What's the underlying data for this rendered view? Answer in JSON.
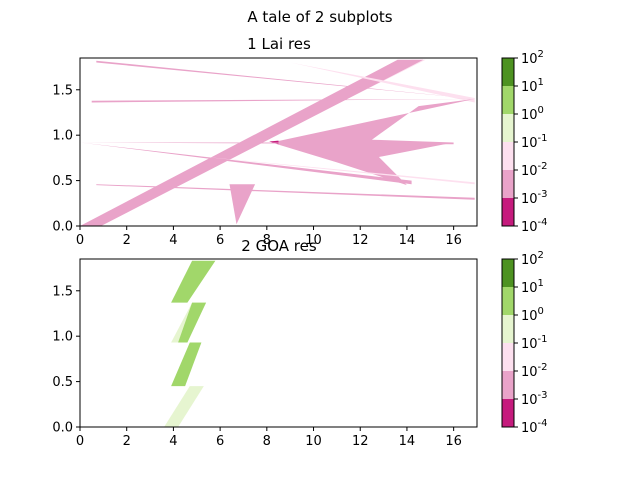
{
  "figure": {
    "suptitle": "A tale of 2 subplots"
  },
  "palette": {
    "bands": [
      "#c51b7d",
      "#e9a3c9",
      "#fde0ef",
      "#e6f5d0",
      "#a1d76a",
      "#4d9221"
    ],
    "white": "#ffffff"
  },
  "chart_data": [
    {
      "type": "contour",
      "title": "1 Lai res",
      "xlim": [
        0,
        17
      ],
      "ylim": [
        0,
        1.85
      ],
      "xticks": [
        "0",
        "2",
        "4",
        "6",
        "8",
        "10",
        "12",
        "14",
        "16"
      ],
      "yticks": [
        "0.0",
        "0.5",
        "1.0",
        "1.5"
      ],
      "colorbar": {
        "scale": "log",
        "levels": [
          -4,
          -3,
          -2,
          -1,
          0,
          1,
          2
        ],
        "tick_base": "10"
      },
      "regions": [
        {
          "band": 2,
          "points": [
            [
              0,
              0
            ],
            [
              14.2,
              1.83
            ],
            [
              14.8,
              1.83
            ],
            [
              0.6,
              0
            ]
          ]
        },
        {
          "band": 1,
          "points": [
            [
              0,
              0
            ],
            [
              13.6,
              1.83
            ],
            [
              14.7,
              1.83
            ],
            [
              0.9,
              0
            ]
          ]
        },
        {
          "band": 1,
          "points": [
            [
              0.7,
              1.82
            ],
            [
              16.9,
              1.4
            ],
            [
              0.7,
              1.8
            ]
          ]
        },
        {
          "band": 2,
          "points": [
            [
              9,
              1.8
            ],
            [
              16.9,
              1.36
            ],
            [
              16.9,
              1.41
            ]
          ]
        },
        {
          "band": 1,
          "points": [
            [
              0.5,
              1.38
            ],
            [
              16.9,
              1.4
            ],
            [
              0.5,
              1.36
            ]
          ]
        },
        {
          "band": 1,
          "points": [
            [
              8.2,
              0.92
            ],
            [
              16.9,
              1.4
            ],
            [
              14.5,
              1.32
            ],
            [
              12.5,
              0.95
            ],
            [
              16.0,
              0.92
            ],
            [
              12.8,
              0.76
            ],
            [
              14.0,
              0.45
            ],
            [
              11.0,
              0.7
            ]
          ]
        },
        {
          "band": 0,
          "points": [
            [
              8.1,
              0.93
            ],
            [
              8.5,
              0.94
            ],
            [
              8.5,
              0.9
            ]
          ]
        },
        {
          "band": 1,
          "points": [
            [
              0,
              0.92
            ],
            [
              16.0,
              0.9
            ],
            [
              16.0,
              0.92
            ]
          ]
        },
        {
          "band": 1,
          "points": [
            [
              0,
              0.92
            ],
            [
              14.2,
              0.46
            ],
            [
              14.2,
              0.5
            ]
          ]
        },
        {
          "band": 2,
          "points": [
            [
              5.0,
              0.77
            ],
            [
              16.9,
              0.46
            ],
            [
              16.9,
              0.48
            ]
          ]
        },
        {
          "band": 1,
          "points": [
            [
              0.7,
              0.45
            ],
            [
              16.9,
              0.29
            ],
            [
              16.9,
              0.31
            ],
            [
              0.7,
              0.46
            ]
          ]
        },
        {
          "band": 1,
          "points": [
            [
              6.4,
              0.46
            ],
            [
              7.5,
              0.46
            ],
            [
              6.7,
              0.02
            ]
          ]
        }
      ]
    },
    {
      "type": "contour",
      "title": "2 GOA res",
      "xlim": [
        0,
        17
      ],
      "ylim": [
        0,
        1.85
      ],
      "xticks": [
        "0",
        "2",
        "4",
        "6",
        "8",
        "10",
        "12",
        "14",
        "16"
      ],
      "yticks": [
        "0.0",
        "0.5",
        "1.0",
        "1.5"
      ],
      "colorbar": {
        "scale": "log",
        "levels": [
          -4,
          -3,
          -2,
          -1,
          0,
          1,
          2
        ],
        "tick_base": "10"
      },
      "regions": [
        {
          "band": 3,
          "points": [
            [
              3.6,
              0
            ],
            [
              4.7,
              0.45
            ],
            [
              5.3,
              0.45
            ],
            [
              4.2,
              0
            ]
          ]
        },
        {
          "band": 4,
          "points": [
            [
              3.9,
              1.37
            ],
            [
              4.8,
              1.83
            ],
            [
              5.8,
              1.83
            ],
            [
              4.6,
              1.37
            ]
          ]
        },
        {
          "band": 3,
          "points": [
            [
              3.9,
              0.93
            ],
            [
              4.8,
              1.37
            ],
            [
              5.4,
              1.37
            ],
            [
              4.4,
              0.93
            ]
          ]
        },
        {
          "band": 4,
          "points": [
            [
              4.2,
              0.93
            ],
            [
              4.8,
              1.37
            ],
            [
              5.4,
              1.37
            ],
            [
              4.6,
              0.93
            ]
          ]
        },
        {
          "band": 4,
          "points": [
            [
              3.9,
              0.45
            ],
            [
              4.7,
              0.93
            ],
            [
              5.2,
              0.93
            ],
            [
              4.5,
              0.45
            ]
          ]
        }
      ]
    }
  ]
}
